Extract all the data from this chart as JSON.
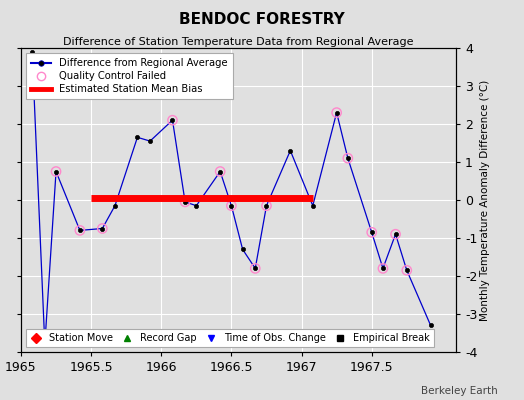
{
  "title": "BENDOC FORESTRY",
  "subtitle": "Difference of Station Temperature Data from Regional Average",
  "ylabel_right": "Monthly Temperature Anomaly Difference (°C)",
  "watermark": "Berkeley Earth",
  "xlim": [
    1965,
    1968.1
  ],
  "ylim": [
    -4,
    4
  ],
  "xticks": [
    1965,
    1965.5,
    1966,
    1966.5,
    1967,
    1967.5
  ],
  "yticks": [
    -4,
    -3,
    -2,
    -1,
    0,
    1,
    2,
    3,
    4
  ],
  "bias_line_x": [
    1965.5,
    1967.08
  ],
  "bias_line_y": [
    0.05,
    0.05
  ],
  "line_data_x": [
    1965.08,
    1965.17,
    1965.25,
    1965.42,
    1965.58,
    1965.67,
    1965.83,
    1965.92,
    1966.08,
    1966.17,
    1966.25,
    1966.42,
    1966.5,
    1966.58,
    1966.67,
    1966.75,
    1966.92,
    1967.08,
    1967.25,
    1967.33,
    1967.5,
    1967.58,
    1967.67,
    1967.75,
    1967.92
  ],
  "line_data_y": [
    3.9,
    -3.8,
    0.75,
    -0.8,
    -0.75,
    -0.15,
    1.65,
    1.55,
    2.1,
    -0.05,
    -0.15,
    0.75,
    -0.15,
    -1.3,
    -1.8,
    -0.15,
    1.3,
    -0.15,
    2.3,
    1.1,
    -0.85,
    -1.8,
    -0.9,
    -1.85,
    -3.3
  ],
  "qc_failed_x": [
    1965.25,
    1965.42,
    1965.58,
    1966.08,
    1966.17,
    1966.42,
    1966.5,
    1966.67,
    1966.75,
    1967.25,
    1967.33,
    1967.5,
    1967.58,
    1967.67,
    1967.75
  ],
  "qc_failed_y": [
    0.75,
    -0.8,
    -0.75,
    2.1,
    -0.05,
    0.75,
    -0.15,
    -1.8,
    -0.15,
    2.3,
    1.1,
    -0.85,
    -1.8,
    -0.9,
    -1.85
  ],
  "line_color": "#0000cc",
  "qc_color": "#ff88cc",
  "bias_color": "#ff0000",
  "bg_color": "#e0e0e0",
  "grid_color": "#ffffff",
  "title_fontsize": 11,
  "subtitle_fontsize": 8,
  "tick_fontsize": 9,
  "ylabel_fontsize": 7.5
}
